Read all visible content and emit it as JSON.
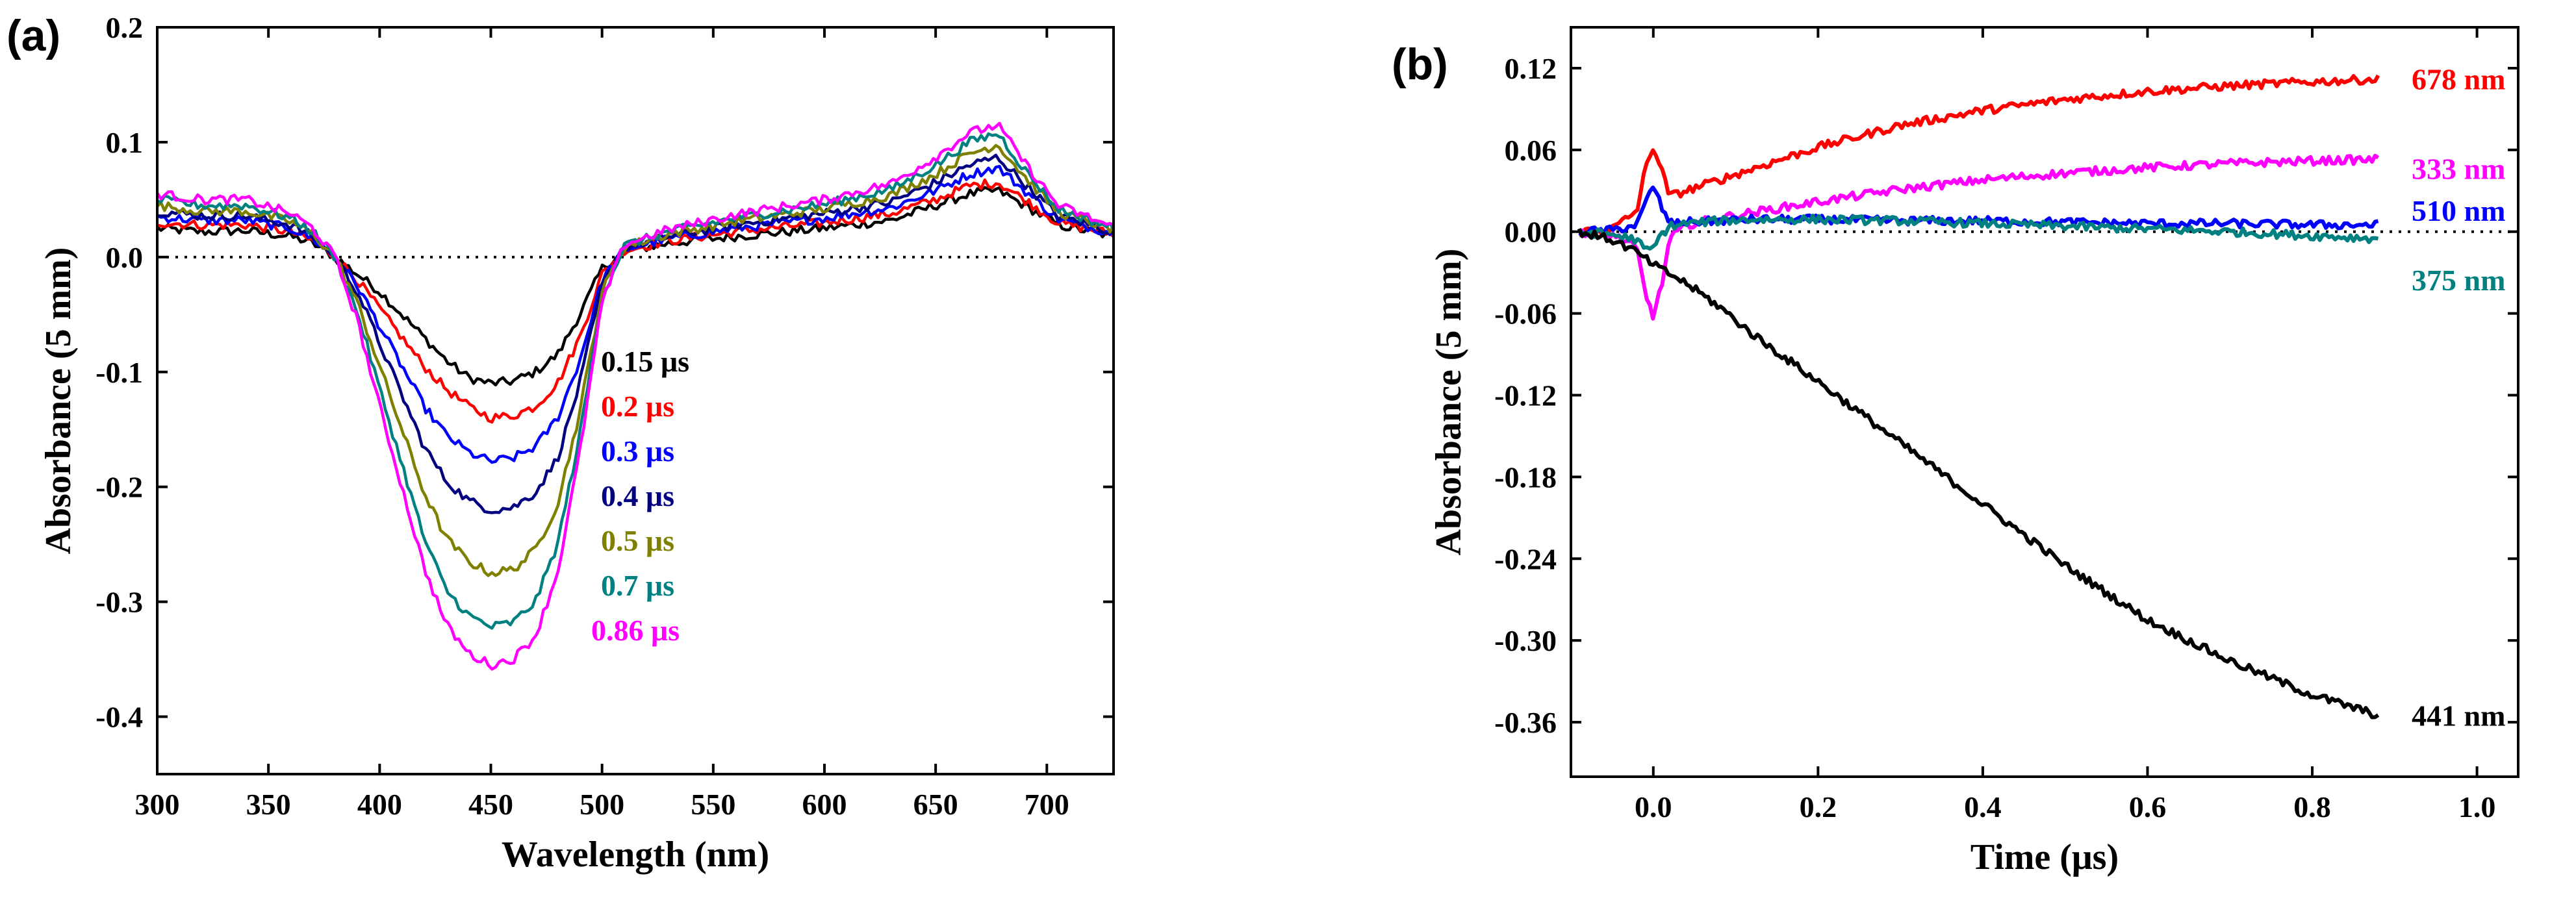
{
  "chart_data": [
    {
      "panel": "(a)",
      "type": "line",
      "xlabel": "Wavelength (nm)",
      "ylabel": "Absorbance (5 mm)",
      "xlim": [
        300,
        730
      ],
      "ylim": [
        -0.45,
        0.2
      ],
      "xticks": [
        300,
        350,
        400,
        450,
        500,
        550,
        600,
        650,
        700
      ],
      "yticks": [
        -0.4,
        -0.3,
        -0.2,
        -0.1,
        0.0,
        0.1,
        0.2
      ],
      "ytick_labels": [
        "-0.4",
        "-0.3",
        "-0.2",
        "-0.1",
        "0.0",
        "0.1",
        "0.2"
      ],
      "zero_line": "dotted",
      "grid": false,
      "x": [
        300,
        320,
        340,
        360,
        370,
        380,
        390,
        400,
        410,
        420,
        430,
        440,
        450,
        460,
        470,
        480,
        490,
        500,
        510,
        530,
        560,
        600,
        630,
        650,
        665,
        678,
        690,
        705,
        730
      ],
      "series": [
        {
          "name": "0.15 μs",
          "color": "#000000",
          "values": [
            0.025,
            0.022,
            0.023,
            0.018,
            0.012,
            0.0,
            -0.015,
            -0.03,
            -0.05,
            -0.07,
            -0.09,
            -0.105,
            -0.11,
            -0.108,
            -0.1,
            -0.085,
            -0.05,
            -0.01,
            0.005,
            0.012,
            0.018,
            0.025,
            0.032,
            0.045,
            0.055,
            0.058,
            0.045,
            0.028,
            0.018
          ]
        },
        {
          "name": "0.2 μs",
          "color": "#ff0000",
          "values": [
            0.03,
            0.028,
            0.028,
            0.022,
            0.014,
            0.0,
            -0.02,
            -0.045,
            -0.07,
            -0.095,
            -0.115,
            -0.13,
            -0.14,
            -0.138,
            -0.13,
            -0.11,
            -0.07,
            -0.015,
            0.006,
            0.014,
            0.022,
            0.03,
            0.038,
            0.05,
            0.062,
            0.065,
            0.05,
            0.03,
            0.02
          ]
        },
        {
          "name": "0.3 μs",
          "color": "#0000ff",
          "values": [
            0.035,
            0.032,
            0.032,
            0.025,
            0.016,
            0.0,
            -0.025,
            -0.06,
            -0.095,
            -0.13,
            -0.155,
            -0.17,
            -0.178,
            -0.175,
            -0.165,
            -0.14,
            -0.09,
            -0.02,
            0.007,
            0.016,
            0.025,
            0.034,
            0.043,
            0.058,
            0.072,
            0.078,
            0.058,
            0.033,
            0.021
          ]
        },
        {
          "name": "0.4 μs",
          "color": "#000080",
          "values": [
            0.04,
            0.036,
            0.036,
            0.028,
            0.018,
            0.0,
            -0.03,
            -0.075,
            -0.12,
            -0.165,
            -0.195,
            -0.212,
            -0.22,
            -0.218,
            -0.205,
            -0.175,
            -0.11,
            -0.025,
            0.008,
            0.018,
            0.028,
            0.038,
            0.048,
            0.065,
            0.08,
            0.087,
            0.064,
            0.036,
            0.022
          ]
        },
        {
          "name": "0.5 μs",
          "color": "#808000",
          "values": [
            0.045,
            0.04,
            0.04,
            0.031,
            0.02,
            0.0,
            -0.04,
            -0.095,
            -0.15,
            -0.205,
            -0.245,
            -0.265,
            -0.275,
            -0.272,
            -0.255,
            -0.215,
            -0.135,
            -0.03,
            0.009,
            0.02,
            0.031,
            0.042,
            0.054,
            0.072,
            0.09,
            0.098,
            0.07,
            0.039,
            0.024
          ]
        },
        {
          "name": "0.7 μs",
          "color": "#008080",
          "values": [
            0.05,
            0.045,
            0.045,
            0.034,
            0.022,
            0.0,
            -0.048,
            -0.115,
            -0.18,
            -0.245,
            -0.29,
            -0.312,
            -0.322,
            -0.318,
            -0.3,
            -0.25,
            -0.155,
            -0.035,
            0.01,
            0.022,
            0.034,
            0.046,
            0.059,
            0.08,
            0.1,
            0.108,
            0.076,
            0.042,
            0.025
          ]
        },
        {
          "name": "0.86 μs",
          "color": "#ff00ff",
          "values": [
            0.055,
            0.05,
            0.05,
            0.038,
            0.025,
            0.0,
            -0.055,
            -0.13,
            -0.2,
            -0.27,
            -0.32,
            -0.345,
            -0.355,
            -0.35,
            -0.33,
            -0.275,
            -0.17,
            -0.04,
            0.011,
            0.024,
            0.037,
            0.05,
            0.064,
            0.087,
            0.108,
            0.115,
            0.082,
            0.045,
            0.026
          ]
        }
      ]
    },
    {
      "panel": "(b)",
      "type": "line",
      "xlabel": "Time (μs)",
      "ylabel": "Absorbance (5 mm)",
      "xlim": [
        -0.1,
        1.05
      ],
      "ylim": [
        -0.4,
        0.15
      ],
      "xticks": [
        0.0,
        0.2,
        0.4,
        0.6,
        0.8,
        1.0
      ],
      "xtick_labels": [
        "0.0",
        "0.2",
        "0.4",
        "0.6",
        "0.8",
        "1.0"
      ],
      "yticks": [
        0.12,
        0.06,
        0.0,
        -0.06,
        -0.12,
        -0.18,
        -0.24,
        -0.3,
        -0.36
      ],
      "ytick_labels": [
        "0.12",
        "0.06",
        "0.00",
        "-0.06",
        "-0.12",
        "-0.18",
        "-0.24",
        "-0.30",
        "-0.36"
      ],
      "zero_line": "dotted",
      "grid": false,
      "x": [
        -0.09,
        -0.05,
        -0.02,
        -0.01,
        0.0,
        0.01,
        0.02,
        0.04,
        0.08,
        0.12,
        0.2,
        0.3,
        0.4,
        0.5,
        0.6,
        0.7,
        0.8,
        0.88
      ],
      "series": [
        {
          "name": "678 nm",
          "color": "#ff0000",
          "values": [
            0.0,
            0.002,
            0.015,
            0.045,
            0.063,
            0.045,
            0.026,
            0.03,
            0.038,
            0.046,
            0.062,
            0.078,
            0.089,
            0.097,
            0.103,
            0.107,
            0.11,
            0.112
          ]
        },
        {
          "name": "333 nm",
          "color": "#ff00ff",
          "values": [
            0.0,
            -0.002,
            -0.012,
            -0.045,
            -0.062,
            -0.04,
            -0.005,
            0.005,
            0.01,
            0.014,
            0.022,
            0.031,
            0.038,
            0.043,
            0.047,
            0.05,
            0.052,
            0.053
          ]
        },
        {
          "name": "510 nm",
          "color": "#0000ff",
          "values": [
            0.0,
            0.001,
            0.005,
            0.02,
            0.034,
            0.018,
            0.006,
            0.007,
            0.008,
            0.009,
            0.009,
            0.008,
            0.008,
            0.007,
            0.006,
            0.006,
            0.005,
            0.005
          ]
        },
        {
          "name": "375 nm",
          "color": "#008080",
          "values": [
            0.0,
            -0.002,
            -0.006,
            -0.014,
            -0.012,
            -0.002,
            0.004,
            0.006,
            0.008,
            0.009,
            0.009,
            0.008,
            0.006,
            0.004,
            0.002,
            0.0,
            -0.003,
            -0.005
          ]
        },
        {
          "name": "441 nm",
          "color": "#000000",
          "values": [
            0.0,
            -0.006,
            -0.015,
            -0.02,
            -0.024,
            -0.028,
            -0.031,
            -0.038,
            -0.055,
            -0.075,
            -0.11,
            -0.155,
            -0.2,
            -0.245,
            -0.285,
            -0.315,
            -0.34,
            -0.355
          ]
        }
      ]
    }
  ]
}
